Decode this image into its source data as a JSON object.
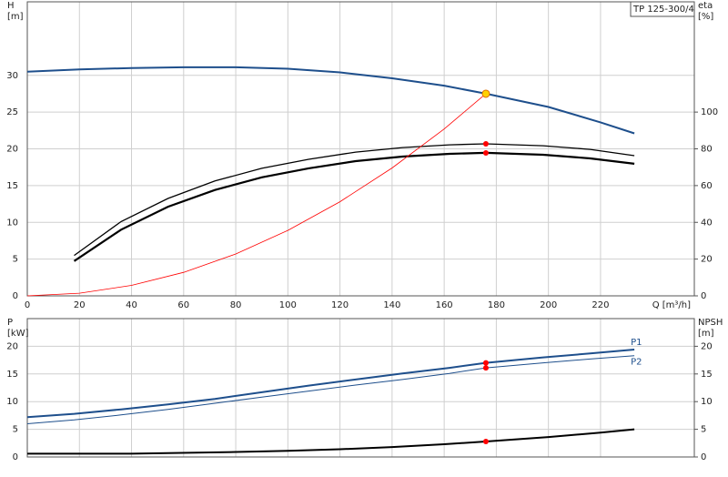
{
  "chart_data": [
    {
      "type": "line",
      "title": "TP 125-300/4",
      "x_label": "Q [m³/h]",
      "y_label": "H",
      "y_unit": "[m]",
      "y2_label": "eta",
      "y2_unit": "[%]",
      "xlim": [
        0,
        256
      ],
      "xticks": [
        0,
        20,
        40,
        60,
        80,
        100,
        120,
        140,
        160,
        180,
        200,
        220
      ],
      "ylim": [
        0,
        40
      ],
      "yticks": [
        0,
        5,
        10,
        15,
        20,
        25,
        30
      ],
      "y2lim": [
        0,
        160
      ],
      "y2ticks": [
        0,
        20,
        40,
        60,
        80,
        100
      ],
      "grid": true,
      "series": [
        {
          "color": "#1e4f8c",
          "x": [
            0,
            20,
            40,
            60,
            80,
            100,
            120,
            140,
            160,
            176,
            200,
            220,
            233
          ],
          "values": [
            30.5,
            30.8,
            31.0,
            31.1,
            31.1,
            30.9,
            30.4,
            29.6,
            28.6,
            27.5,
            25.7,
            23.6,
            22.1
          ]
        },
        {
          "color": "#000000",
          "axis": "y2",
          "x": [
            18,
            36,
            54,
            72,
            90,
            108,
            126,
            144,
            162,
            176,
            198,
            216,
            233
          ],
          "values": [
            22,
            40.4,
            53,
            62.5,
            69.4,
            74.3,
            78.2,
            80.7,
            82.2,
            82.7,
            81.7,
            79.7,
            76.3
          ]
        },
        {
          "color": "#000000",
          "axis": "y2",
          "x": [
            18,
            36,
            54,
            72,
            90,
            108,
            126,
            144,
            162,
            176,
            198,
            216,
            233
          ],
          "values": [
            18.9,
            36,
            48.5,
            57.6,
            64.5,
            69.4,
            73.3,
            75.8,
            77.3,
            77.8,
            76.8,
            74.8,
            71.9
          ]
        },
        {
          "color": "#ff0000",
          "x": [
            0,
            20,
            40,
            60,
            80,
            100,
            120,
            140,
            160,
            176
          ],
          "values": [
            0,
            0.36,
            1.42,
            3.2,
            5.7,
            8.9,
            12.8,
            17.4,
            22.7,
            27.5
          ]
        }
      ],
      "points": [
        {
          "x": 176,
          "y": 27.5,
          "color": "#ffd200"
        },
        {
          "x": 176,
          "y": 82.7,
          "axis": "y2",
          "color": "#ff0000"
        },
        {
          "x": 176,
          "y": 77.8,
          "axis": "y2",
          "color": "#ff0000"
        }
      ]
    },
    {
      "type": "line",
      "y_label": "P",
      "y_unit": "[kW]",
      "y2_label": "NPSH",
      "y2_unit": "[m]",
      "xlim": [
        0,
        256
      ],
      "xticks": [
        0,
        20,
        40,
        60,
        80,
        100,
        120,
        140,
        160,
        180,
        200,
        220
      ],
      "ylim": [
        0,
        25
      ],
      "yticks": [
        0,
        5,
        10,
        15,
        20
      ],
      "y2lim": [
        0,
        25
      ],
      "y2ticks": [
        0,
        5,
        10,
        15,
        20
      ],
      "grid": true,
      "series": [
        {
          "name": "P1",
          "color": "#1e4f8c",
          "x": [
            0,
            18,
            36,
            54,
            72,
            90,
            108,
            126,
            144,
            162,
            176,
            198,
            216,
            233
          ],
          "values": [
            7.2,
            7.8,
            8.6,
            9.5,
            10.5,
            11.7,
            12.9,
            14.0,
            15.1,
            16.1,
            17.0,
            18.0,
            18.7,
            19.4
          ]
        },
        {
          "name": "P2",
          "color": "#1e4f8c",
          "x": [
            0,
            18,
            36,
            54,
            72,
            90,
            108,
            126,
            144,
            162,
            176,
            198,
            216,
            233
          ],
          "values": [
            6.0,
            6.7,
            7.6,
            8.6,
            9.7,
            10.8,
            11.9,
            13.0,
            14.0,
            15.1,
            16.1,
            17.0,
            17.7,
            18.3
          ]
        },
        {
          "color": "#000000",
          "axis": "y2",
          "x": [
            0,
            40,
            80,
            100,
            120,
            140,
            160,
            176,
            200,
            220,
            233
          ],
          "values": [
            0.6,
            0.6,
            0.9,
            1.1,
            1.4,
            1.8,
            2.3,
            2.8,
            3.6,
            4.4,
            5.0
          ]
        }
      ],
      "points": [
        {
          "x": 176,
          "y": 17.0,
          "color": "#ff0000"
        },
        {
          "x": 176,
          "y": 16.1,
          "color": "#ff0000"
        },
        {
          "x": 176,
          "y": 2.8,
          "axis": "y2",
          "color": "#ff0000"
        }
      ]
    }
  ]
}
